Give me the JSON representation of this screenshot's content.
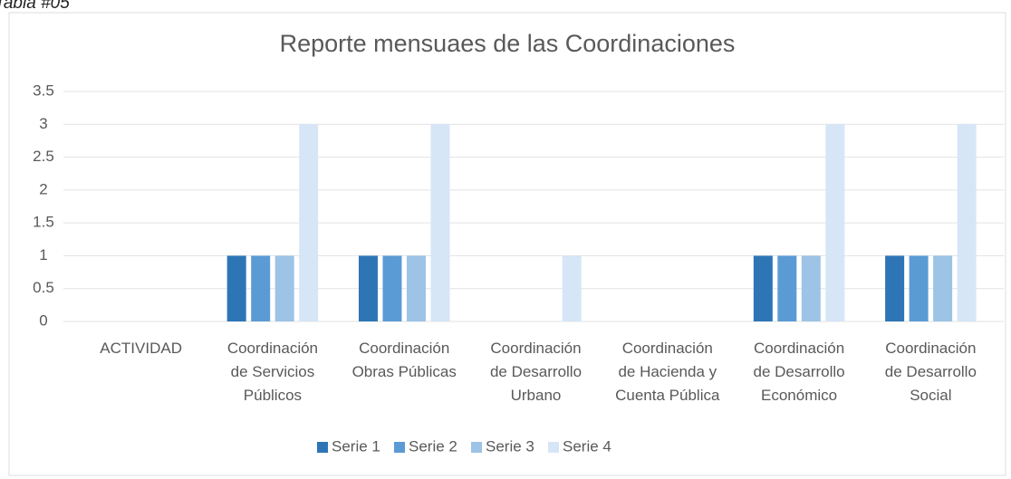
{
  "page_label": "Tabla #05",
  "chart_data": {
    "type": "bar",
    "title": "Reporte mensuaes de las Coordinaciones",
    "categories": [
      "ACTIVIDAD",
      "Coordinación de Servicios Públicos",
      "Coordinación Obras Públicas",
      "Coordinación de Desarrollo Urbano",
      "Coordinación de Hacienda y Cuenta Pública",
      "Coordinación de Desarrollo Económico",
      "Coordinación de Desarrollo Social"
    ],
    "series": [
      {
        "name": "Serie 1",
        "color": "#2e75b6",
        "values": [
          0,
          1,
          1,
          0,
          0,
          1,
          1
        ]
      },
      {
        "name": "Serie 2",
        "color": "#5b9bd5",
        "values": [
          0,
          1,
          1,
          0,
          0,
          1,
          1
        ]
      },
      {
        "name": "Serie 3",
        "color": "#9dc3e6",
        "values": [
          0,
          1,
          1,
          0,
          0,
          1,
          1
        ]
      },
      {
        "name": "Serie 4",
        "color": "#d6e6f7",
        "values": [
          0,
          3,
          3,
          1,
          0,
          3,
          3
        ]
      }
    ],
    "ylim": [
      0,
      3.5
    ],
    "yticks": [
      0,
      0.5,
      1,
      1.5,
      2,
      2.5,
      3,
      3.5
    ],
    "grid": true,
    "legend": "bottom"
  }
}
